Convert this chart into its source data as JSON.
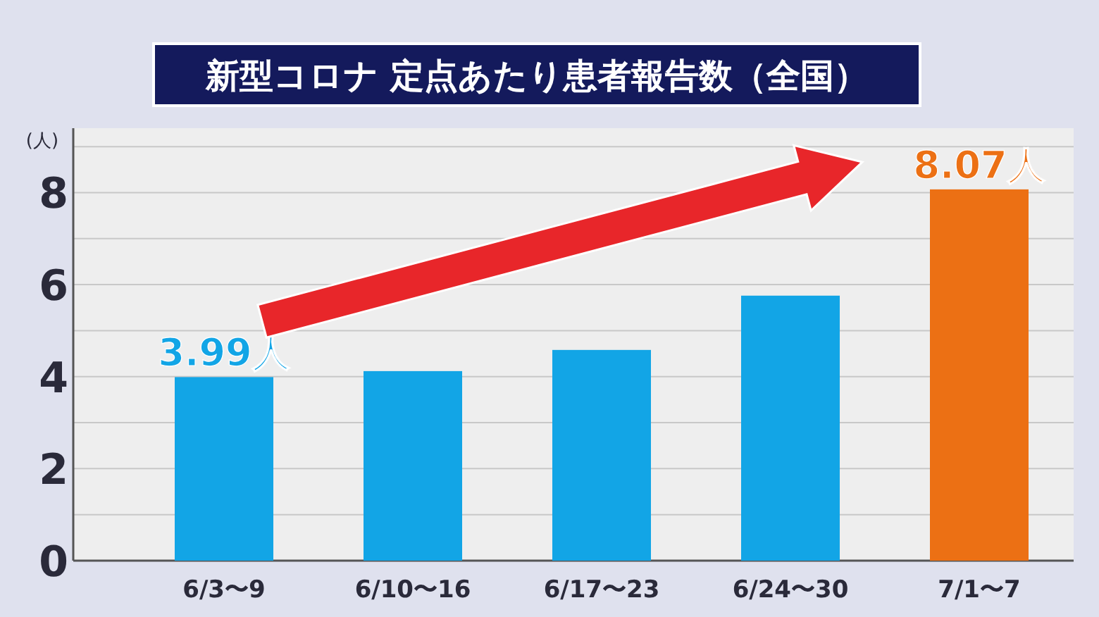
{
  "chart_data": {
    "type": "bar",
    "title": "新型コロナ 定点あたり患者報告数（全国）",
    "ylabel": "(人)",
    "categories": [
      "6/3〜9",
      "6/10〜16",
      "6/17〜23",
      "6/24〜30",
      "7/1〜7"
    ],
    "values": [
      3.99,
      4.12,
      4.58,
      5.76,
      8.07
    ],
    "colors": [
      "#12a5e6",
      "#12a5e6",
      "#12a5e6",
      "#12a5e6",
      "#ec7014"
    ],
    "value_labels": [
      "3.99人",
      null,
      null,
      null,
      "8.07人"
    ],
    "ylim": [
      0,
      9.4
    ],
    "yticks": [
      0,
      {
        "value": 1,
        "label": null
      },
      2,
      {
        "value": 3,
        "label": null
      },
      4,
      {
        "value": 5,
        "label": null
      },
      6,
      {
        "value": 7,
        "label": null
      },
      8,
      {
        "value": 9,
        "label": null
      }
    ],
    "grid": "y"
  }
}
